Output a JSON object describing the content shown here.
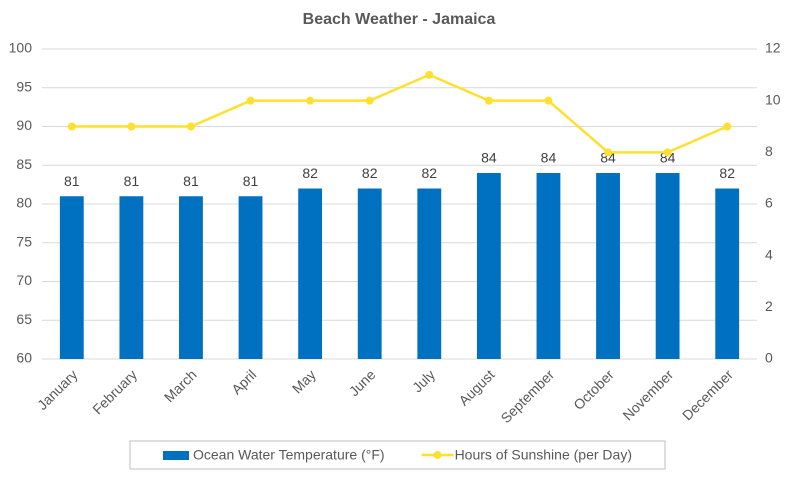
{
  "chart_data": {
    "type": "bar",
    "title": "Beach Weather - Jamaica",
    "categories": [
      "January",
      "February",
      "March",
      "April",
      "May",
      "June",
      "July",
      "August",
      "September",
      "October",
      "November",
      "December"
    ],
    "series": [
      {
        "name": "Ocean Water Temperature (°F)",
        "type": "bar",
        "color": "#0070c0",
        "values": [
          81,
          81,
          81,
          81,
          82,
          82,
          82,
          84,
          84,
          84,
          84,
          82
        ]
      },
      {
        "name": "Hours of Sunshine (per Day)",
        "type": "line",
        "axis": "y2",
        "color": "#ffe030",
        "values": [
          9,
          9,
          9,
          10,
          10,
          10,
          11,
          10,
          10,
          8,
          8,
          9
        ]
      }
    ],
    "ylim": [
      60,
      100
    ],
    "yticks": [
      60,
      65,
      70,
      75,
      80,
      85,
      90,
      95,
      100
    ],
    "y2lim": [
      0,
      12
    ],
    "y2ticks": [
      0,
      2,
      4,
      6,
      8,
      10,
      12
    ],
    "grid": true,
    "legend": "bottom"
  }
}
